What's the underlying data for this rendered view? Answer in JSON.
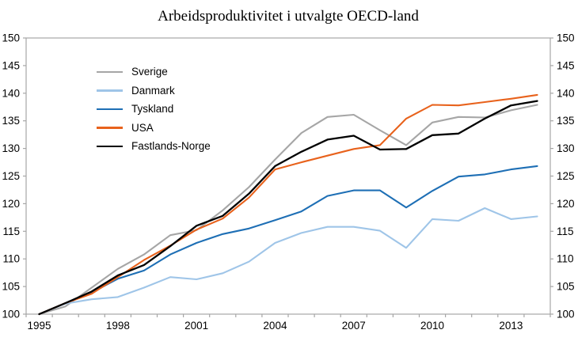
{
  "page": {
    "background": "#ffffff"
  },
  "chart_data": {
    "type": "line",
    "title": "Arbeidsproduktivitet i utvalgte OECD-land",
    "x": [
      1995,
      1996,
      1997,
      1998,
      1999,
      2000,
      2001,
      2002,
      2003,
      2004,
      2005,
      2006,
      2007,
      2008,
      2009,
      2010,
      2011,
      2012,
      2013,
      2014
    ],
    "x_tick_labels": [
      "1995",
      "1998",
      "2001",
      "2004",
      "2007",
      "2010",
      "2013"
    ],
    "y_ticks": [
      "100",
      "105",
      "110",
      "115",
      "120",
      "125",
      "130",
      "135",
      "140",
      "145",
      "150"
    ],
    "ylim": [
      100,
      150
    ],
    "dual_y_axis": true,
    "grid": false,
    "legend_position": "upper-left-inside",
    "axis_color": "#a6a6a6",
    "text_color": "#000000",
    "series": [
      {
        "name": "Sverige",
        "color": "#a6a6a6",
        "values": [
          100,
          101.4,
          104.8,
          108.2,
          110.8,
          114.3,
          115.2,
          118.8,
          123.0,
          128.0,
          132.8,
          135.7,
          136.1,
          133.3,
          130.6,
          134.7,
          135.7,
          135.6,
          136.9,
          137.9
        ]
      },
      {
        "name": "Danmark",
        "color": "#9fc5e8",
        "values": [
          100,
          101.9,
          102.7,
          103.1,
          104.8,
          106.7,
          106.3,
          107.4,
          109.5,
          112.9,
          114.7,
          115.8,
          115.8,
          115.1,
          112.0,
          117.2,
          116.9,
          119.2,
          117.2,
          117.7
        ]
      },
      {
        "name": "Tyskland",
        "color": "#1e6fb5",
        "values": [
          100,
          102.0,
          103.9,
          106.4,
          107.9,
          110.8,
          112.9,
          114.5,
          115.5,
          117.0,
          118.6,
          121.4,
          122.4,
          122.4,
          119.3,
          122.3,
          124.9,
          125.3,
          126.2,
          126.8
        ]
      },
      {
        "name": "USA",
        "color": "#e8621c",
        "values": [
          100,
          102.0,
          103.7,
          106.7,
          109.8,
          112.4,
          115.3,
          117.3,
          121.1,
          126.2,
          127.5,
          128.7,
          129.9,
          130.6,
          135.4,
          137.9,
          137.8,
          138.4,
          139.0,
          139.7
        ]
      },
      {
        "name": "Fastlands-Norge",
        "color": "#000000",
        "values": [
          100,
          102.0,
          104.1,
          107.0,
          108.9,
          112.3,
          116.0,
          117.8,
          121.8,
          126.8,
          129.4,
          131.6,
          132.3,
          129.8,
          129.9,
          132.4,
          132.7,
          135.4,
          137.8,
          138.6
        ]
      }
    ]
  }
}
